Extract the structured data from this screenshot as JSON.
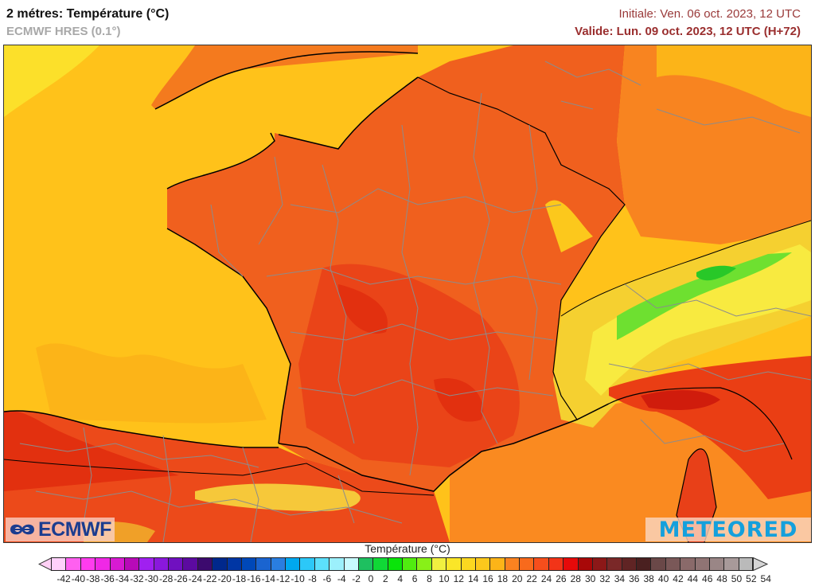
{
  "header": {
    "title": "2 métres: Température (°C)",
    "model": "ECMWF HRES (0.1°)",
    "initial": "Initiale: Ven. 06 oct. 2023, 12 UTC",
    "valid": "Valide: Lun. 09 oct. 2023, 12 UTC (H+72)"
  },
  "map": {
    "region": "France and surrounding areas",
    "variable": "2 m temperature",
    "sea_color": "#ffc21a",
    "land_color_main": "#f05a1e",
    "land_color_hot": "#e02a10",
    "mountain_color_cold": "#f5e93c",
    "alpine_peaks_color": "#3ccf2a",
    "coast_line_color": "#000000",
    "admin_border_color": "#8c8c8c"
  },
  "logos": {
    "left": "ECMWF",
    "right": "METEORED"
  },
  "colorbar": {
    "title": "Température (°C)",
    "ticks": [
      "-42",
      "-40",
      "-38",
      "-36",
      "-34",
      "-32",
      "-30",
      "-28",
      "-26",
      "-24",
      "-22",
      "-20",
      "-18",
      "-16",
      "-14",
      "-12",
      "-10",
      "-8",
      "-6",
      "-4",
      "-2",
      "0",
      "2",
      "4",
      "6",
      "8",
      "10",
      "12",
      "14",
      "16",
      "18",
      "20",
      "22",
      "24",
      "26",
      "28",
      "30",
      "32",
      "34",
      "36",
      "38",
      "40",
      "42",
      "44",
      "46",
      "48",
      "50",
      "52",
      "54"
    ],
    "under_color": "#ffd0f5",
    "over_color": "#d5d5d5",
    "colors": [
      "#ffd0fa",
      "#ff60f0",
      "#ff3cee",
      "#f028e6",
      "#d81ad2",
      "#b80ab8",
      "#a020f0",
      "#8a18dc",
      "#7010c0",
      "#5c0aa0",
      "#3c0a6e",
      "#00288c",
      "#0036a4",
      "#0048b8",
      "#1a64d0",
      "#2a7ee0",
      "#00a8f0",
      "#2cc8f8",
      "#5ce0fc",
      "#9cf0fc",
      "#c8faff",
      "#1ec060",
      "#10d836",
      "#0ae40a",
      "#50ec10",
      "#88f018",
      "#f0f040",
      "#fae628",
      "#fcd820",
      "#fcc81c",
      "#fcb418",
      "#fa8220",
      "#f86a1c",
      "#f64e1c",
      "#f23418",
      "#e60a0a",
      "#a80808",
      "#8c1818",
      "#7a2828",
      "#602424",
      "#4a2020",
      "#6a4848",
      "#7a5858",
      "#8a6a6a",
      "#907474",
      "#9a8686",
      "#a89a9a",
      "#bababa"
    ]
  }
}
